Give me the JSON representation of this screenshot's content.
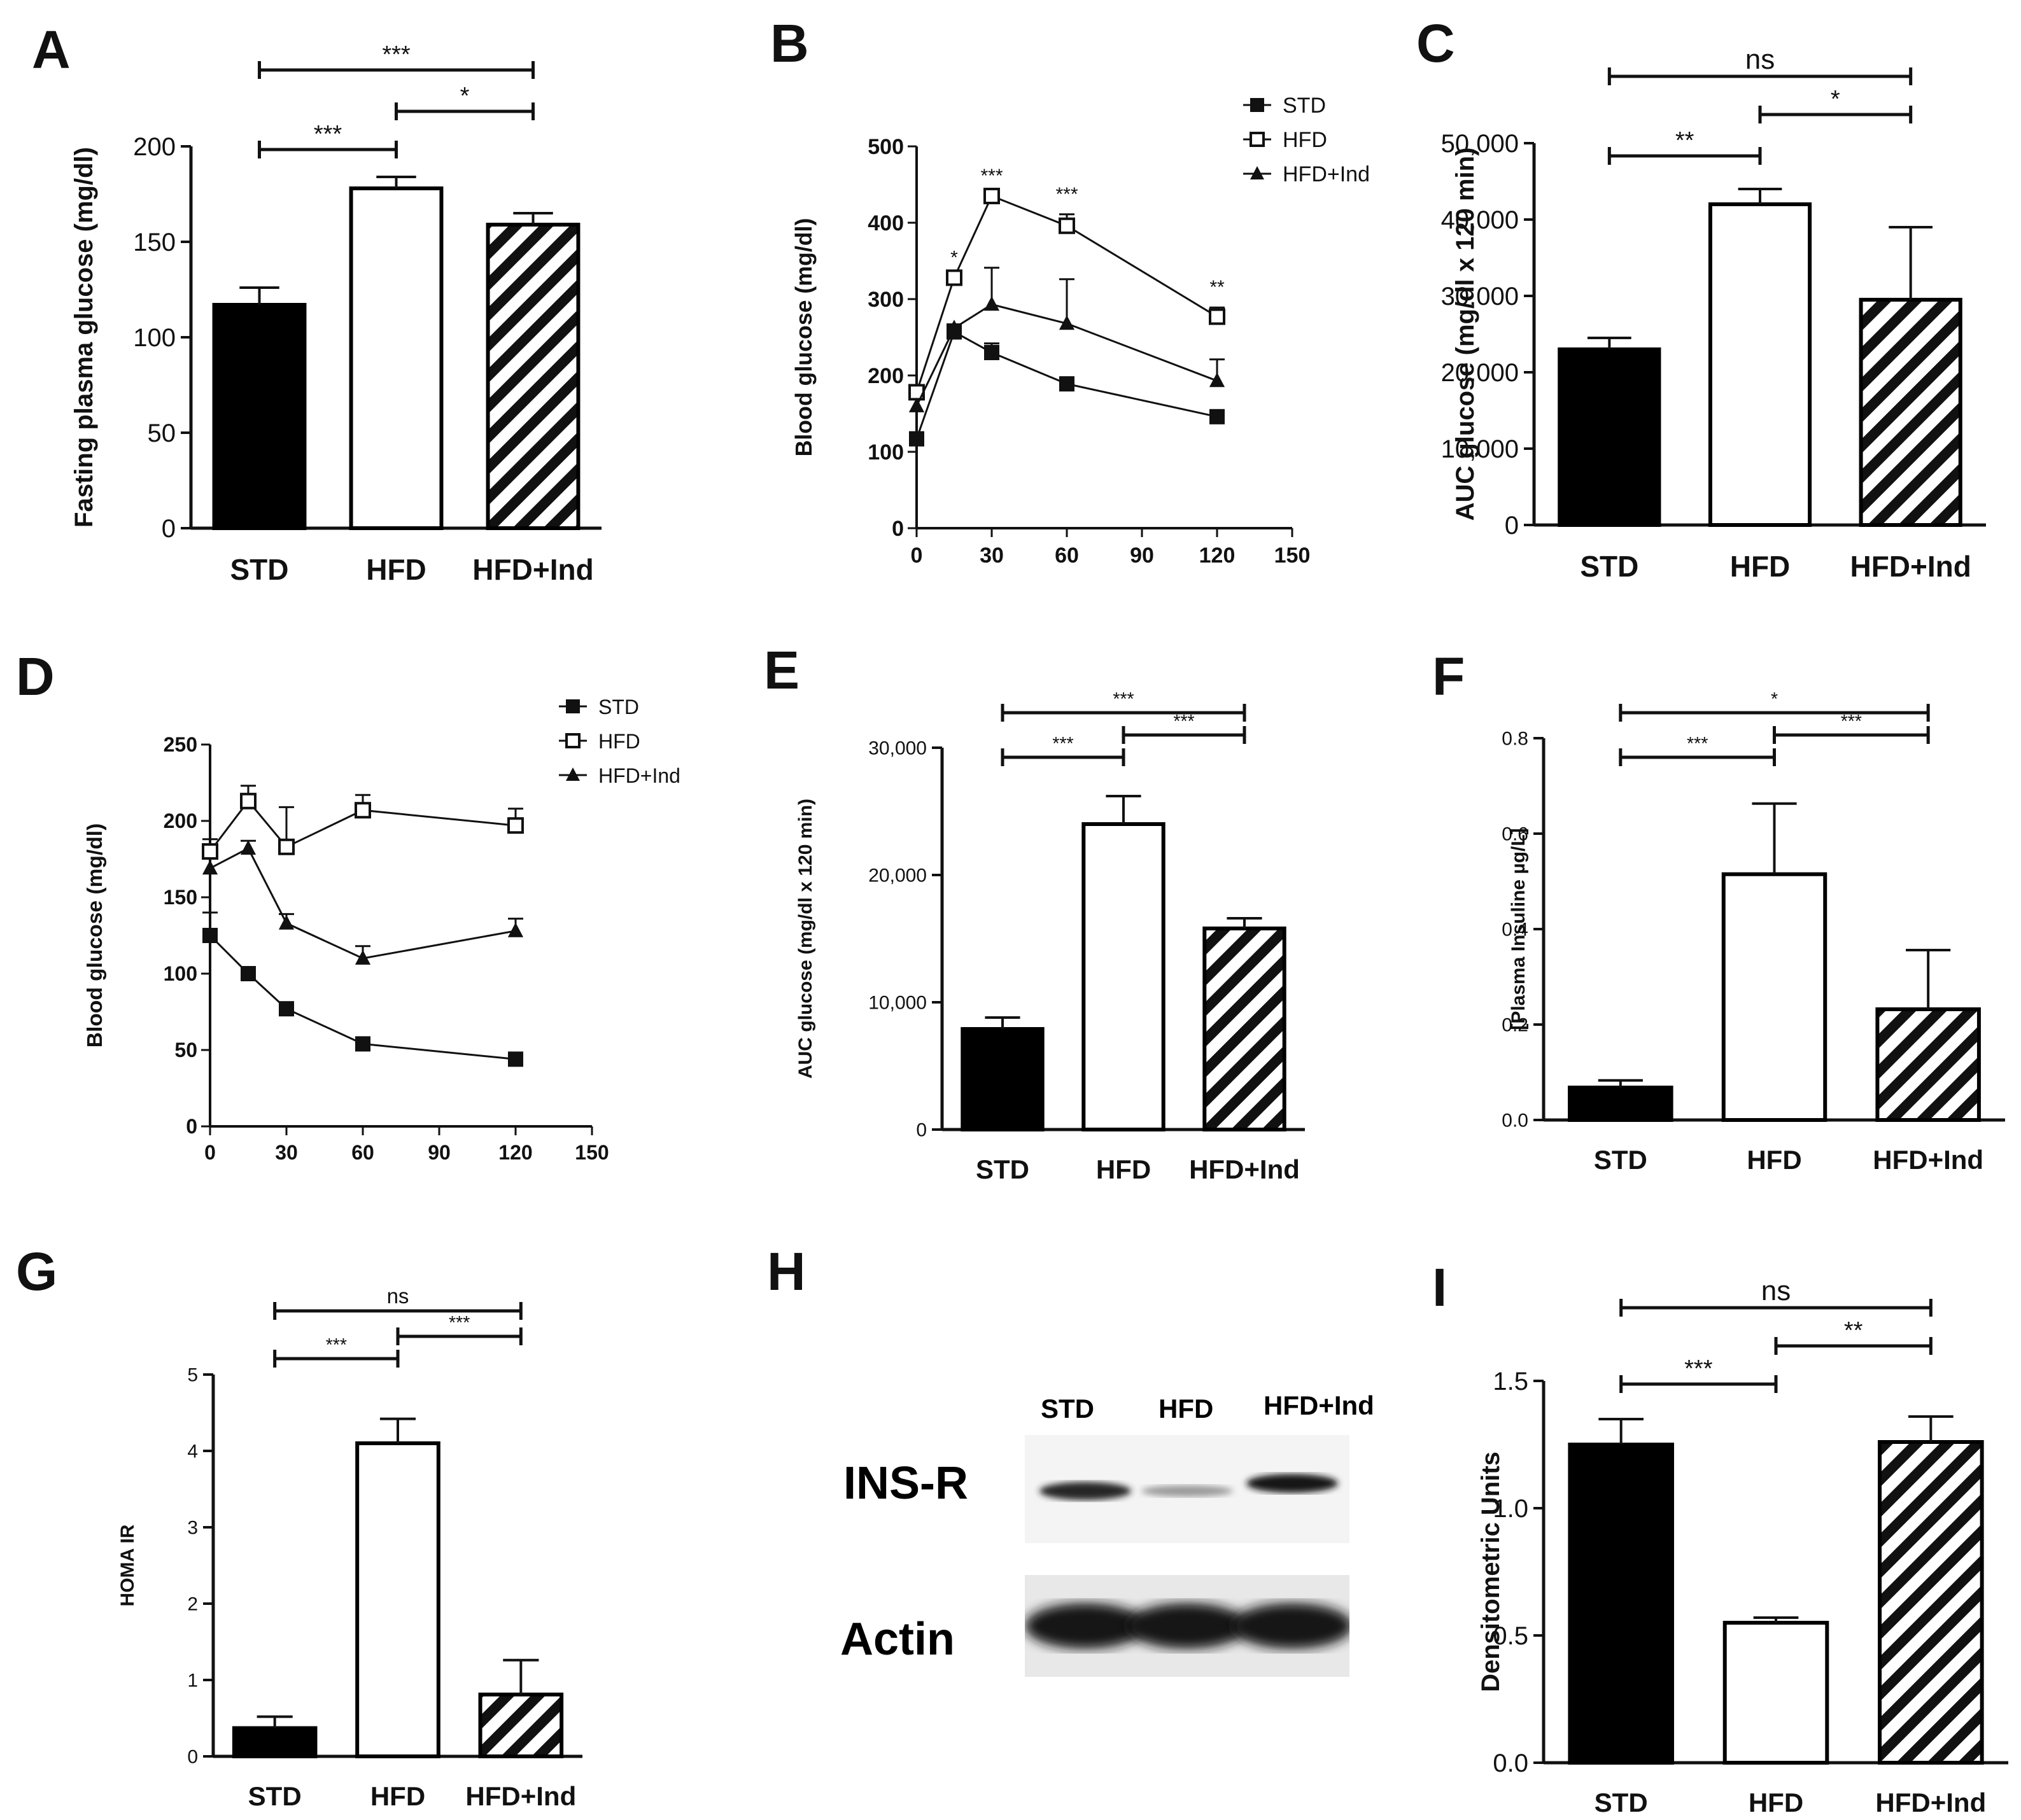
{
  "chart_data": [
    {
      "panel": "A",
      "type": "bar",
      "categories": [
        "STD",
        "HFD",
        "HFD+Ind"
      ],
      "values": [
        117,
        178,
        159
      ],
      "errors": [
        9,
        6,
        6
      ],
      "fills": [
        "solid",
        "open",
        "hatched"
      ],
      "ylabel": "Fasting plasma glucose (mg/dl)",
      "ylim": [
        0,
        200
      ],
      "yticks": [
        0,
        50,
        100,
        150,
        200
      ],
      "yticklabels": [
        "0",
        "50",
        "100",
        "150",
        "200"
      ],
      "sig": [
        {
          "from": 0,
          "to": 1,
          "label": "***",
          "level": 0
        },
        {
          "from": 1,
          "to": 2,
          "label": "*",
          "level": 1
        },
        {
          "from": 0,
          "to": 2,
          "label": "***",
          "level": 2
        }
      ]
    },
    {
      "panel": "B",
      "type": "line",
      "x": [
        0,
        15,
        30,
        60,
        120
      ],
      "series": [
        {
          "name": "STD",
          "marker": "square-filled",
          "values": [
            117,
            257,
            230,
            189,
            146
          ],
          "errors": [
            0,
            10,
            12,
            6,
            5
          ]
        },
        {
          "name": "HFD",
          "marker": "square-open",
          "values": [
            178,
            328,
            435,
            396,
            277
          ],
          "errors": [
            8,
            0,
            0,
            15,
            12
          ]
        },
        {
          "name": "HFD+Ind",
          "marker": "triangle",
          "values": [
            160,
            262,
            293,
            268,
            193
          ],
          "errors": [
            0,
            0,
            48,
            58,
            28
          ]
        }
      ],
      "annotations": [
        {
          "x": 15,
          "label": "*"
        },
        {
          "x": 30,
          "label": "***"
        },
        {
          "x": 60,
          "label": "***"
        },
        {
          "x": 120,
          "label": "**"
        }
      ],
      "ylabel": "Blood glucose (mg/dl)",
      "xlim": [
        0,
        150
      ],
      "xticks": [
        0,
        30,
        60,
        90,
        120,
        150
      ],
      "xticklabels": [
        "0",
        "30",
        "60",
        "90",
        "120",
        "150"
      ],
      "ylim": [
        0,
        500
      ],
      "yticks": [
        0,
        100,
        200,
        300,
        400,
        500
      ],
      "yticklabels": [
        "0",
        "100",
        "200",
        "300",
        "400",
        "500"
      ],
      "legend": "top-right"
    },
    {
      "panel": "C",
      "type": "bar",
      "categories": [
        "STD",
        "HFD",
        "HFD+Ind"
      ],
      "values": [
        23000,
        42000,
        29500
      ],
      "errors": [
        1500,
        2000,
        9500
      ],
      "fills": [
        "solid",
        "open",
        "hatched"
      ],
      "ylabel": "AUC glucose (mg/dl  x 120 min)",
      "ylim": [
        0,
        50000
      ],
      "yticks": [
        0,
        10000,
        20000,
        30000,
        40000,
        50000
      ],
      "yticklabels": [
        "0",
        "10,000",
        "20,000",
        "30,000",
        "40,000",
        "50,000"
      ],
      "sig": [
        {
          "from": 0,
          "to": 1,
          "label": "**",
          "level": 0
        },
        {
          "from": 1,
          "to": 2,
          "label": "*",
          "level": 1
        },
        {
          "from": 0,
          "to": 2,
          "label": "ns",
          "level": 2
        }
      ]
    },
    {
      "panel": "D",
      "type": "line",
      "x": [
        0,
        15,
        30,
        60,
        120
      ],
      "series": [
        {
          "name": "STD",
          "marker": "square-filled",
          "values": [
            125,
            100,
            77,
            54,
            44
          ],
          "errors": [
            15,
            0,
            0,
            0,
            0
          ]
        },
        {
          "name": "HFD",
          "marker": "square-open",
          "values": [
            180,
            213,
            183,
            207,
            197
          ],
          "errors": [
            8,
            10,
            26,
            10,
            11
          ]
        },
        {
          "name": "HFD+Ind",
          "marker": "triangle",
          "values": [
            169,
            182,
            133,
            110,
            128
          ],
          "errors": [
            0,
            5,
            6,
            8,
            8
          ]
        }
      ],
      "ylabel": "Blood glucose (mg/dl)",
      "xlim": [
        0,
        150
      ],
      "xticks": [
        0,
        30,
        60,
        90,
        120,
        150
      ],
      "xticklabels": [
        "0",
        "30",
        "60",
        "90",
        "120",
        "150"
      ],
      "ylim": [
        0,
        250
      ],
      "yticks": [
        0,
        50,
        100,
        150,
        200,
        250
      ],
      "yticklabels": [
        "0",
        "50",
        "100",
        "150",
        "200",
        "250"
      ],
      "legend": "top-right"
    },
    {
      "panel": "E",
      "type": "bar",
      "categories": [
        "STD",
        "HFD",
        "HFD+Ind"
      ],
      "values": [
        7900,
        24000,
        15800
      ],
      "errors": [
        900,
        2200,
        800
      ],
      "fills": [
        "solid",
        "open",
        "hatched"
      ],
      "ylabel": "AUC glucose (mg/dl  x 120 min)",
      "ylim": [
        0,
        30000
      ],
      "yticks": [
        0,
        10000,
        20000,
        30000
      ],
      "yticklabels": [
        "0",
        "10,000",
        "20,000",
        "30,000"
      ],
      "sig": [
        {
          "from": 0,
          "to": 1,
          "label": "***",
          "level": 0
        },
        {
          "from": 1,
          "to": 2,
          "label": "***",
          "level": 1
        },
        {
          "from": 0,
          "to": 2,
          "label": "***",
          "level": 2
        }
      ]
    },
    {
      "panel": "F",
      "type": "bar",
      "categories": [
        "STD",
        "HFD",
        "HFD+Ind"
      ],
      "values": [
        0.068,
        0.515,
        0.232
      ],
      "errors": [
        0.015,
        0.148,
        0.124
      ],
      "fills": [
        "solid",
        "open",
        "hatched"
      ],
      "ylabel": "[Plasma Insuline µg/L]",
      "ylim": [
        0,
        0.8
      ],
      "yticks": [
        0,
        0.2,
        0.4,
        0.6,
        0.8
      ],
      "yticklabels": [
        "0.0",
        "0.2",
        "0.4",
        "0.6",
        "0.8"
      ],
      "sig": [
        {
          "from": 0,
          "to": 1,
          "label": "***",
          "level": 0
        },
        {
          "from": 1,
          "to": 2,
          "label": "***",
          "level": 1
        },
        {
          "from": 0,
          "to": 2,
          "label": "*",
          "level": 2
        }
      ]
    },
    {
      "panel": "G",
      "type": "bar",
      "categories": [
        "STD",
        "HFD",
        "HFD+Ind"
      ],
      "values": [
        0.37,
        4.1,
        0.81
      ],
      "errors": [
        0.15,
        0.32,
        0.45
      ],
      "fills": [
        "solid",
        "open",
        "hatched"
      ],
      "ylabel": "HOMA IR",
      "ylim": [
        0,
        5
      ],
      "yticks": [
        0,
        1,
        2,
        3,
        4,
        5
      ],
      "yticklabels": [
        "0",
        "1",
        "2",
        "3",
        "4",
        "5"
      ],
      "sig": [
        {
          "from": 0,
          "to": 1,
          "label": "***",
          "level": 0
        },
        {
          "from": 1,
          "to": 2,
          "label": "***",
          "level": 1
        },
        {
          "from": 0,
          "to": 2,
          "label": "ns",
          "level": 2
        }
      ]
    },
    {
      "panel": "I",
      "type": "bar",
      "categories": [
        "STD",
        "HFD",
        "HFD+Ind"
      ],
      "values": [
        1.25,
        0.55,
        1.26
      ],
      "errors": [
        0.1,
        0.02,
        0.1
      ],
      "fills": [
        "solid",
        "open",
        "hatched"
      ],
      "ylabel": "Densitometric Units",
      "ylim": [
        0,
        1.5
      ],
      "yticks": [
        0,
        0.5,
        1.0,
        1.5
      ],
      "yticklabels": [
        "0.0",
        "0.5",
        "1.0",
        "1.5"
      ],
      "sig": [
        {
          "from": 0,
          "to": 1,
          "label": "***",
          "level": 0
        },
        {
          "from": 1,
          "to": 2,
          "label": "**",
          "level": 1
        },
        {
          "from": 0,
          "to": 2,
          "label": "ns",
          "level": 2
        }
      ]
    }
  ],
  "panel_labels": {
    "A": "A",
    "B": "B",
    "C": "C",
    "D": "D",
    "E": "E",
    "F": "F",
    "G": "G",
    "H": "H",
    "I": "I"
  },
  "blot": {
    "lanes": [
      "STD",
      "HFD",
      "HFD+Ind"
    ],
    "rows": [
      {
        "label": "INS-R",
        "band_intensity": [
          0.85,
          0.4,
          0.9
        ]
      },
      {
        "label": "Actin",
        "band_intensity": [
          0.9,
          0.9,
          0.9
        ]
      }
    ]
  }
}
